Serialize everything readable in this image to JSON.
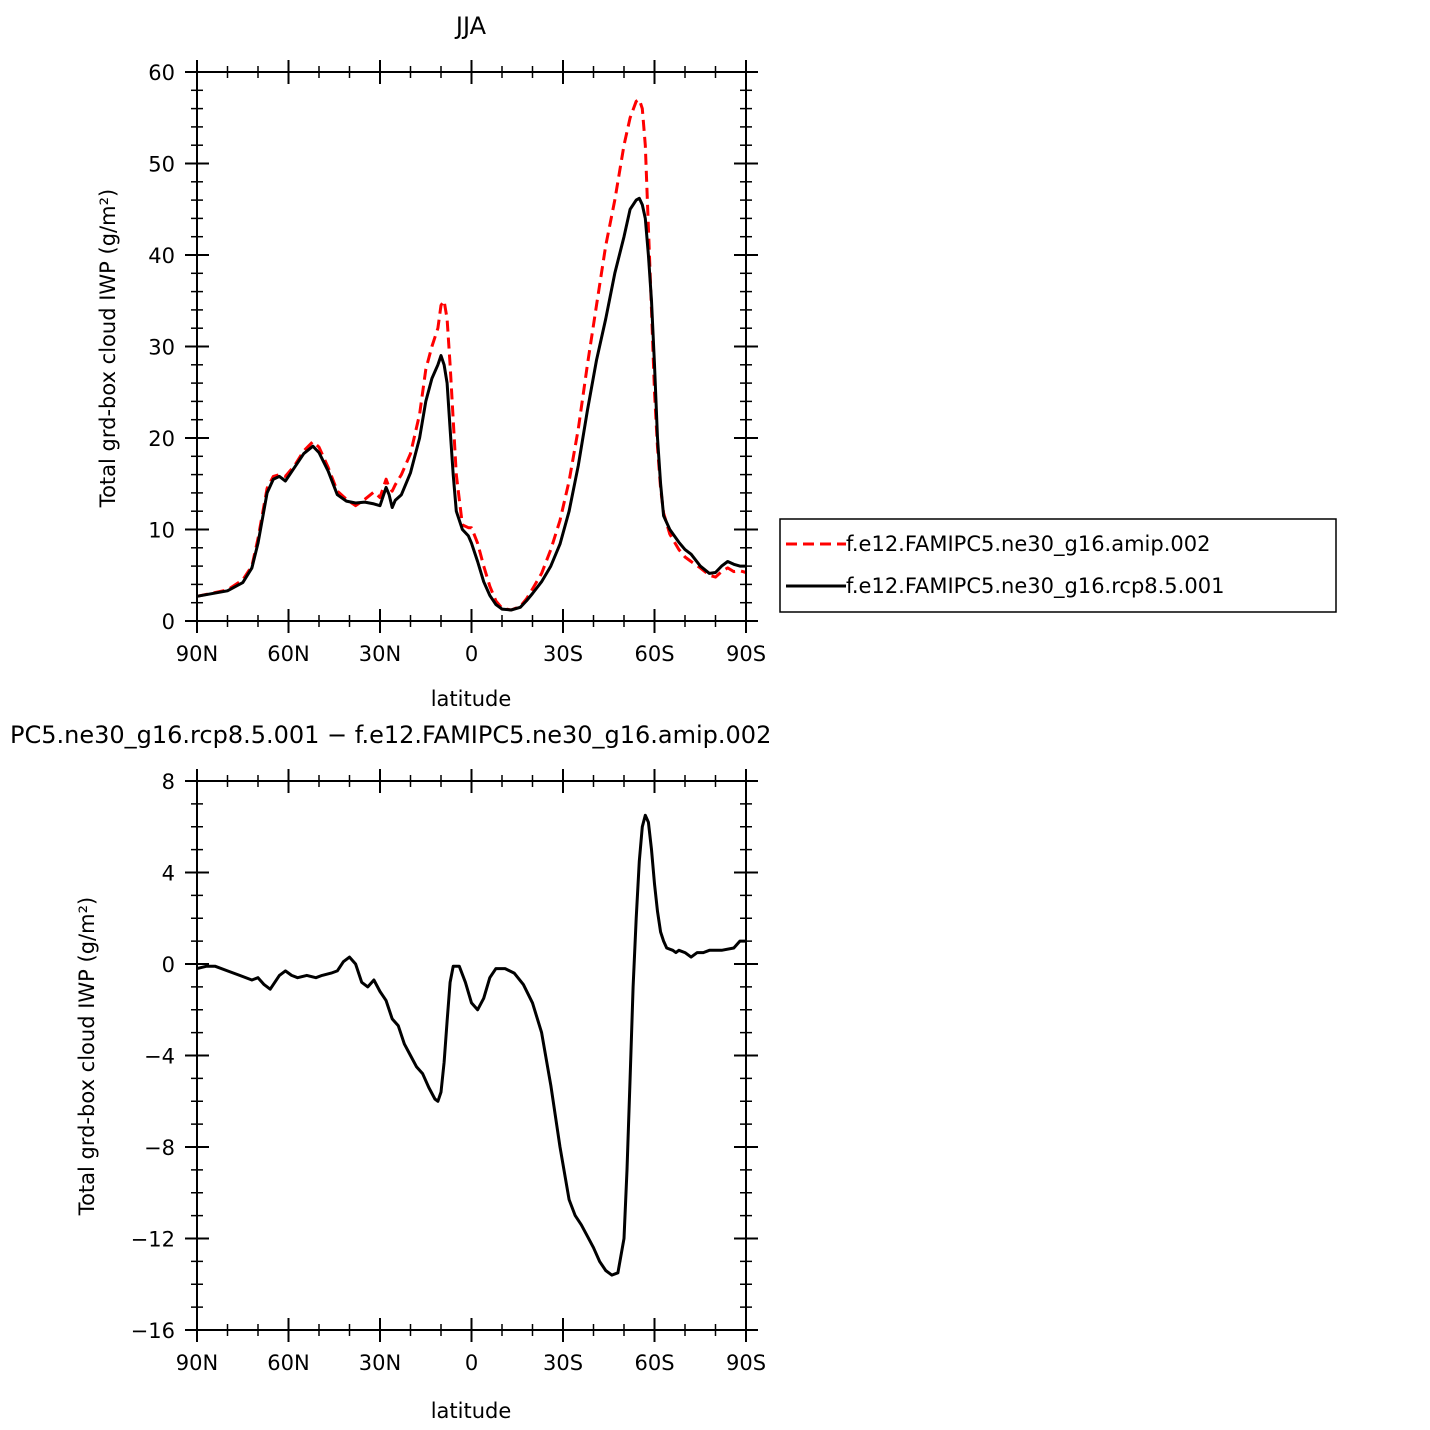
{
  "chart_data": [
    {
      "type": "line",
      "title": "JJA",
      "xlabel": "latitude",
      "ylabel": "Total grd-box cloud IWP (g/m²)",
      "xlim": [
        90,
        -90
      ],
      "ylim": [
        0,
        60
      ],
      "x_ticks": [
        90,
        60,
        30,
        0,
        -30,
        -60,
        -90
      ],
      "x_tick_labels": [
        "90N",
        "60N",
        "30N",
        "0",
        "30S",
        "60S",
        "90S"
      ],
      "y_ticks": [
        0,
        10,
        20,
        30,
        40,
        50,
        60
      ],
      "y_tick_labels": [
        "0",
        "10",
        "20",
        "30",
        "40",
        "50",
        "60"
      ],
      "grid": false,
      "legend_position": "right",
      "series": [
        {
          "name": "f.e12.FAMIPC5.ne30_g16.amip.002",
          "color": "#ff0000",
          "dash": "dashed",
          "x": [
            90,
            80,
            75,
            72,
            70,
            67,
            65,
            63,
            61,
            58,
            55,
            52,
            50,
            47,
            44,
            41,
            38,
            35,
            32,
            30,
            28,
            27,
            26,
            25,
            23,
            20,
            17,
            15,
            13,
            11,
            10,
            9,
            8,
            7,
            6,
            5,
            3,
            1,
            0,
            -2,
            -4,
            -6,
            -8,
            -10,
            -13,
            -16,
            -18,
            -20,
            -23,
            -26,
            -29,
            -32,
            -35,
            -38,
            -41,
            -44,
            -47,
            -50,
            -52,
            -54,
            -55,
            -56,
            -57,
            -58,
            -59,
            -60,
            -61,
            -62,
            -63,
            -65,
            -68,
            -70,
            -72,
            -75,
            -78,
            -80,
            -82,
            -84,
            -86,
            -88,
            -90
          ],
          "y": [
            2.7,
            3.4,
            4.5,
            6.0,
            9.0,
            14.5,
            15.8,
            16.0,
            15.8,
            17.0,
            18.6,
            19.6,
            19.0,
            16.8,
            14.2,
            13.3,
            12.6,
            13.3,
            14.1,
            13.5,
            15.5,
            14.6,
            14.2,
            14.9,
            16.0,
            18.3,
            22.6,
            27.5,
            30.0,
            32.0,
            34.5,
            35.0,
            33.0,
            28.0,
            22.0,
            16.0,
            10.5,
            10.2,
            10.2,
            8.5,
            6.0,
            3.8,
            2.2,
            1.4,
            1.2,
            1.6,
            2.4,
            3.5,
            5.2,
            7.8,
            11.0,
            15.3,
            21.0,
            28.0,
            34.5,
            41.0,
            46.0,
            52.0,
            55.0,
            56.8,
            57.0,
            56.0,
            52.0,
            43.0,
            34.0,
            25.0,
            19.0,
            14.5,
            11.8,
            9.5,
            7.8,
            7.0,
            6.5,
            5.8,
            5.0,
            4.8,
            5.4,
            5.8,
            5.4,
            5.5,
            5.3
          ]
        },
        {
          "name": "f.e12.FAMIPC5.ne30_g16.rcp8.5.001",
          "color": "#000000",
          "dash": "solid",
          "x": [
            90,
            80,
            75,
            72,
            70,
            67,
            65,
            63,
            61,
            58,
            55,
            52,
            50,
            47,
            44,
            41,
            38,
            35,
            32,
            30,
            28,
            27,
            26,
            25,
            23,
            20,
            17,
            15,
            13,
            11,
            10,
            9,
            8,
            7,
            6,
            5,
            3,
            1,
            0,
            -2,
            -4,
            -6,
            -8,
            -10,
            -13,
            -16,
            -18,
            -20,
            -23,
            -26,
            -29,
            -32,
            -35,
            -38,
            -41,
            -44,
            -47,
            -50,
            -52,
            -54,
            -55,
            -56,
            -57,
            -58,
            -59,
            -60,
            -61,
            -62,
            -63,
            -65,
            -68,
            -70,
            -72,
            -75,
            -78,
            -80,
            -82,
            -84,
            -86,
            -88,
            -90
          ],
          "y": [
            2.7,
            3.3,
            4.2,
            5.8,
            8.5,
            14.0,
            15.5,
            15.8,
            15.3,
            16.8,
            18.3,
            19.1,
            18.4,
            16.4,
            13.8,
            13.1,
            12.9,
            13.0,
            12.8,
            12.6,
            14.6,
            13.8,
            12.4,
            13.2,
            13.8,
            16.2,
            20.0,
            24.0,
            26.5,
            28.0,
            29.0,
            28.0,
            26.0,
            21.0,
            16.0,
            12.0,
            10.0,
            9.3,
            8.5,
            6.5,
            4.3,
            2.8,
            1.8,
            1.3,
            1.2,
            1.5,
            2.2,
            3.0,
            4.3,
            6.0,
            8.4,
            12.0,
            17.0,
            23.0,
            28.5,
            33.0,
            38.0,
            42.0,
            45.0,
            46.0,
            46.2,
            45.5,
            44.0,
            40.0,
            35.0,
            28.0,
            20.0,
            15.0,
            11.5,
            10.0,
            8.6,
            7.8,
            7.3,
            6.0,
            5.2,
            5.3,
            6.0,
            6.5,
            6.2,
            6.0,
            6.0
          ]
        }
      ]
    },
    {
      "type": "line",
      "title": "PC5.ne30_g16.rcp8.5.001 − f.e12.FAMIPC5.ne30_g16.amip.002",
      "xlabel": "latitude",
      "ylabel": "Total grd-box cloud IWP (g/m²)",
      "xlim": [
        90,
        -90
      ],
      "ylim": [
        -16,
        8
      ],
      "x_ticks": [
        90,
        60,
        30,
        0,
        -30,
        -60,
        -90
      ],
      "x_tick_labels": [
        "90N",
        "60N",
        "30N",
        "0",
        "30S",
        "60S",
        "90S"
      ],
      "y_ticks": [
        -16,
        -12,
        -8,
        -4,
        0,
        4,
        8
      ],
      "y_tick_labels": [
        "−16",
        "−12",
        "−8",
        "−4",
        "0",
        "4",
        "8"
      ],
      "grid": false,
      "series": [
        {
          "color": "#000000",
          "dash": "solid",
          "x": [
            90,
            87,
            84,
            80,
            76,
            72,
            70,
            68,
            66,
            63,
            61,
            59,
            57,
            54,
            51,
            49,
            46,
            44,
            42,
            40,
            38,
            36,
            34,
            32,
            30,
            28,
            26,
            24,
            22,
            20,
            18,
            16,
            14,
            12,
            11,
            10,
            9,
            8,
            7,
            6,
            4,
            2,
            0,
            -2,
            -4,
            -6,
            -8,
            -11,
            -14,
            -17,
            -20,
            -23,
            -26,
            -29,
            -32,
            -34,
            -36,
            -38,
            -40,
            -42,
            -44,
            -46,
            -48,
            -50,
            -51,
            -52,
            -53,
            -54,
            -55,
            -56,
            -57,
            -58,
            -59,
            -60,
            -61,
            -62,
            -63,
            -64,
            -66,
            -67,
            -68,
            -70,
            -72,
            -74,
            -76,
            -78,
            -82,
            -86,
            -88,
            -90
          ],
          "y": [
            -0.2,
            -0.1,
            -0.1,
            -0.3,
            -0.5,
            -0.7,
            -0.6,
            -0.9,
            -1.1,
            -0.5,
            -0.3,
            -0.5,
            -0.6,
            -0.5,
            -0.6,
            -0.5,
            -0.4,
            -0.3,
            0.1,
            0.3,
            0.0,
            -0.8,
            -1.0,
            -0.7,
            -1.2,
            -1.6,
            -2.4,
            -2.7,
            -3.5,
            -4.0,
            -4.5,
            -4.8,
            -5.4,
            -5.9,
            -6.0,
            -5.6,
            -4.3,
            -2.5,
            -0.8,
            -0.1,
            -0.1,
            -0.8,
            -1.7,
            -2.0,
            -1.5,
            -0.6,
            -0.2,
            -0.2,
            -0.4,
            -0.9,
            -1.7,
            -3.0,
            -5.3,
            -8.0,
            -10.3,
            -11.0,
            -11.4,
            -11.9,
            -12.4,
            -13.0,
            -13.4,
            -13.6,
            -13.5,
            -12.0,
            -9.0,
            -5.0,
            -1.0,
            2.0,
            4.5,
            6.0,
            6.5,
            6.2,
            5.0,
            3.5,
            2.3,
            1.4,
            1.0,
            0.7,
            0.6,
            0.5,
            0.6,
            0.5,
            0.3,
            0.5,
            0.5,
            0.6,
            0.6,
            0.7,
            1.0,
            1.0
          ]
        }
      ]
    }
  ]
}
